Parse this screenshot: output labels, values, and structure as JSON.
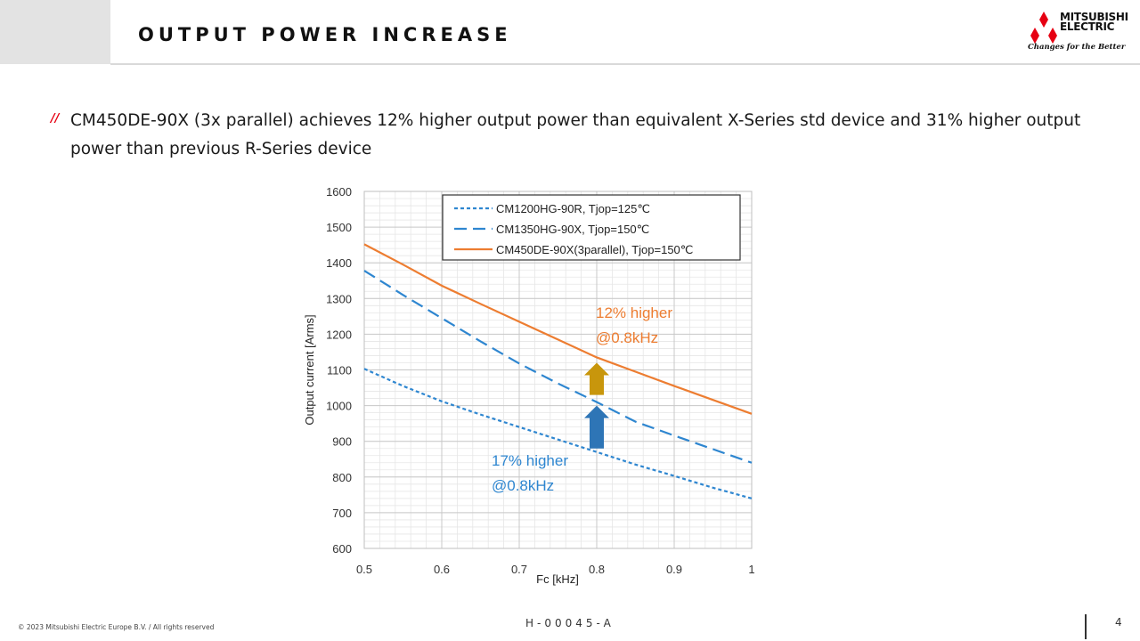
{
  "slide": {
    "title": "OUTPUT POWER INCREASE",
    "bullet_marker": "//",
    "bullet_text": "CM450DE-90X (3x parallel) achieves 12% higher output power than equivalent X-Series std device and 31% higher output power than previous R-Series device"
  },
  "logo": {
    "brand_line1": "MITSUBISHI",
    "brand_line2": "ELECTRIC",
    "tagline": "Changes for the Better",
    "color": "#e60012"
  },
  "footer": {
    "copyright": "© 2023 Mitsubishi Electric Europe B.V. / All rights reserved",
    "doc_code": "H-00045-A",
    "page": "4"
  },
  "chart_data": {
    "type": "line",
    "xlabel": "Fc [kHz]",
    "ylabel": "Output current [Arms]",
    "xlim": [
      0.5,
      1
    ],
    "ylim": [
      600,
      1600
    ],
    "x_ticks": [
      "0.5",
      "0.6",
      "0.7",
      "0.8",
      "0.9",
      "1"
    ],
    "y_ticks": [
      "600",
      "700",
      "800",
      "900",
      "1000",
      "1100",
      "1200",
      "1300",
      "1400",
      "1500",
      "1600"
    ],
    "grid": true,
    "legend_position": "top-right",
    "series": [
      {
        "name": "CM1200HG-90R, Tjop=125℃",
        "color": "#2e86d0",
        "dash": "short",
        "x": [
          0.5,
          0.55,
          0.6,
          0.65,
          0.7,
          0.75,
          0.8,
          0.85,
          0.9,
          0.95,
          1.0
        ],
        "y": [
          1103,
          1055,
          1012,
          975,
          940,
          905,
          870,
          835,
          803,
          770,
          740
        ]
      },
      {
        "name": "CM1350HG-90X, Tjop=150℃",
        "color": "#2e86d0",
        "dash": "long",
        "x": [
          0.5,
          0.55,
          0.6,
          0.65,
          0.7,
          0.75,
          0.8,
          0.85,
          0.9,
          0.95,
          1.0
        ],
        "y": [
          1378,
          1310,
          1245,
          1180,
          1118,
          1062,
          1010,
          955,
          916,
          878,
          840
        ]
      },
      {
        "name": "CM450DE-90X(3parallel), Tjop=150℃",
        "color": "#ed7d31",
        "dash": "solid",
        "x": [
          0.5,
          0.55,
          0.6,
          0.65,
          0.7,
          0.75,
          0.8,
          0.85,
          0.9,
          0.95,
          1.0
        ],
        "y": [
          1452,
          1395,
          1336,
          1285,
          1235,
          1185,
          1135,
          1095,
          1055,
          1016,
          977
        ]
      }
    ],
    "annotations": [
      {
        "text_line1": "12% higher",
        "text_line2": "@0.8kHz",
        "color": "#ed7d31"
      },
      {
        "text_line1": "17% higher",
        "text_line2": "@0.8kHz",
        "color": "#2e86d0"
      }
    ],
    "arrows": [
      {
        "color": "#c8960c",
        "x": 0.8,
        "from_y": 1030,
        "to_y": 1120
      },
      {
        "color": "#2e75b6",
        "x": 0.8,
        "from_y": 880,
        "to_y": 1000
      }
    ]
  }
}
